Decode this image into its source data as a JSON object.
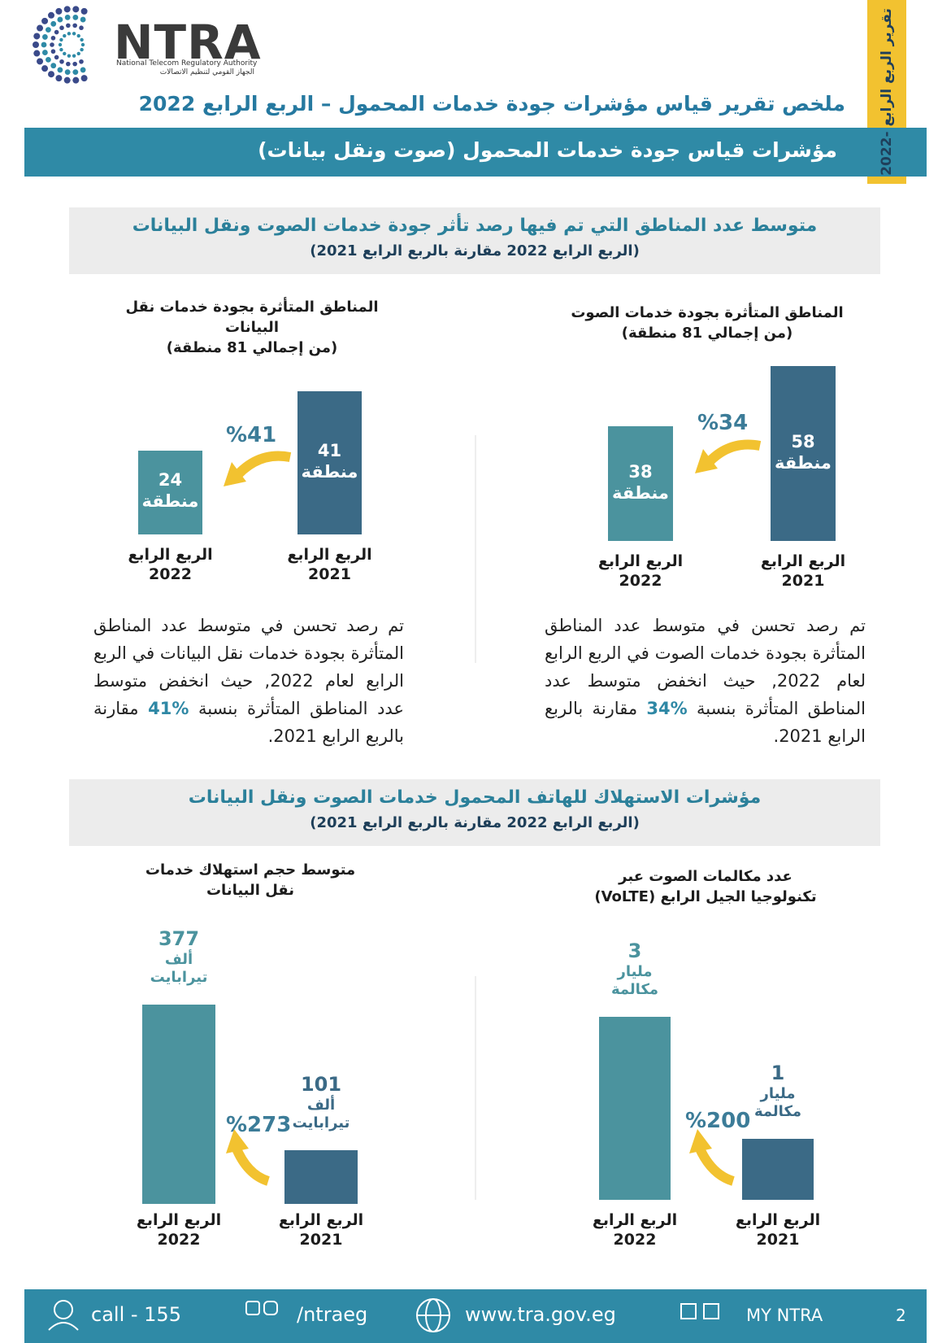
{
  "header": {
    "logo": "NTRA",
    "logo_en": "National Telecom Regulatory Authority",
    "logo_ar": "الجهاز القومي لتنظيم الاتصالات",
    "side_tab": "تقرير الربع الرابع -2022",
    "title": "ملخص تقرير قياس مؤشرات جودة خدمات المحمول – الربع الرابع 2022",
    "banner": "مؤشرات قياس جودة خدمات المحمول (صوت ونقل بيانات)"
  },
  "sections": [
    {
      "title": "متوسط عدد المناطق التي تم فيها رصد تأثر جودة خدمات الصوت ونقل البيانات",
      "subtitle": "(الربع الرابع 2022 مقارنة بالربع الرابع 2021)",
      "charts": [
        {
          "title": [
            "المناطق المتأثرة بجودة خدمات الصوت",
            "(من إجمالي 81 منطقة)"
          ],
          "change": "%34",
          "bars": [
            {
              "period": "الربع الرابع",
              "year": "2021",
              "value": 58,
              "unit": [
                "منطقة"
              ]
            },
            {
              "period": "الربع الرابع",
              "year": "2022",
              "value": 38,
              "unit": [
                "منطقة"
              ]
            }
          ],
          "note": [
            "تم رصد تحسن في متوسط عدد المناطق المتأثرة بجودة خدمات الصوت في الربع الرابع لعام 2022, حيث انخفض متوسط عدد المناطق المتأثرة بنسبة ",
            "%34",
            " مقارنة بالربع الرابع 2021."
          ]
        },
        {
          "title": [
            "المناطق المتأثرة بجودة خدمات نقل البيانات",
            "(من إجمالي 81 منطقة)"
          ],
          "change": "%41",
          "bars": [
            {
              "period": "الربع الرابع",
              "year": "2021",
              "value": 41,
              "unit": [
                "منطقة"
              ]
            },
            {
              "period": "الربع الرابع",
              "year": "2022",
              "value": 24,
              "unit": [
                "منطقة"
              ]
            }
          ],
          "note": [
            "تم رصد تحسن في متوسط عدد المناطق المتأثرة بجودة خدمات نقل البيانات في الربع الرابع لعام 2022, حيث انخفض متوسط عدد المناطق المتأثرة بنسبة ",
            "%41",
            " مقارنة بالربع الرابع 2021."
          ]
        }
      ]
    },
    {
      "title": "مؤشرات الاستهلاك للهاتف المحمول خدمات الصوت ونقل البيانات",
      "subtitle": "(الربع الرابع 2022 مقارنة بالربع الرابع 2021)",
      "charts": [
        {
          "title": [
            "عدد مكالمات الصوت عبر",
            "تكنولوجيا الجيل الرابع (VoLTE)"
          ],
          "change": "%200",
          "bars": [
            {
              "period": "الربع الرابع",
              "year": "2021",
              "value": 1,
              "unit": [
                "مليار",
                "مكالمة"
              ]
            },
            {
              "period": "الربع الرابع",
              "year": "2022",
              "value": 3,
              "unit": [
                "مليار",
                "مكالمة"
              ]
            }
          ]
        },
        {
          "title": [
            "متوسط حجم استهلاك خدمات نقل البيانات"
          ],
          "change": "%273",
          "bars": [
            {
              "period": "الربع الرابع",
              "year": "2021",
              "value": 101,
              "unit": [
                "ألف",
                "تيرابايت"
              ]
            },
            {
              "period": "الربع الرابع",
              "year": "2022",
              "value": 377,
              "unit": [
                "ألف",
                "تيرابايت"
              ]
            }
          ]
        }
      ]
    }
  ],
  "footer": {
    "call": "call - 155",
    "social": "/ntraeg",
    "web": "www.tra.gov.eg",
    "app": "MY NTRA",
    "page": "2"
  }
}
